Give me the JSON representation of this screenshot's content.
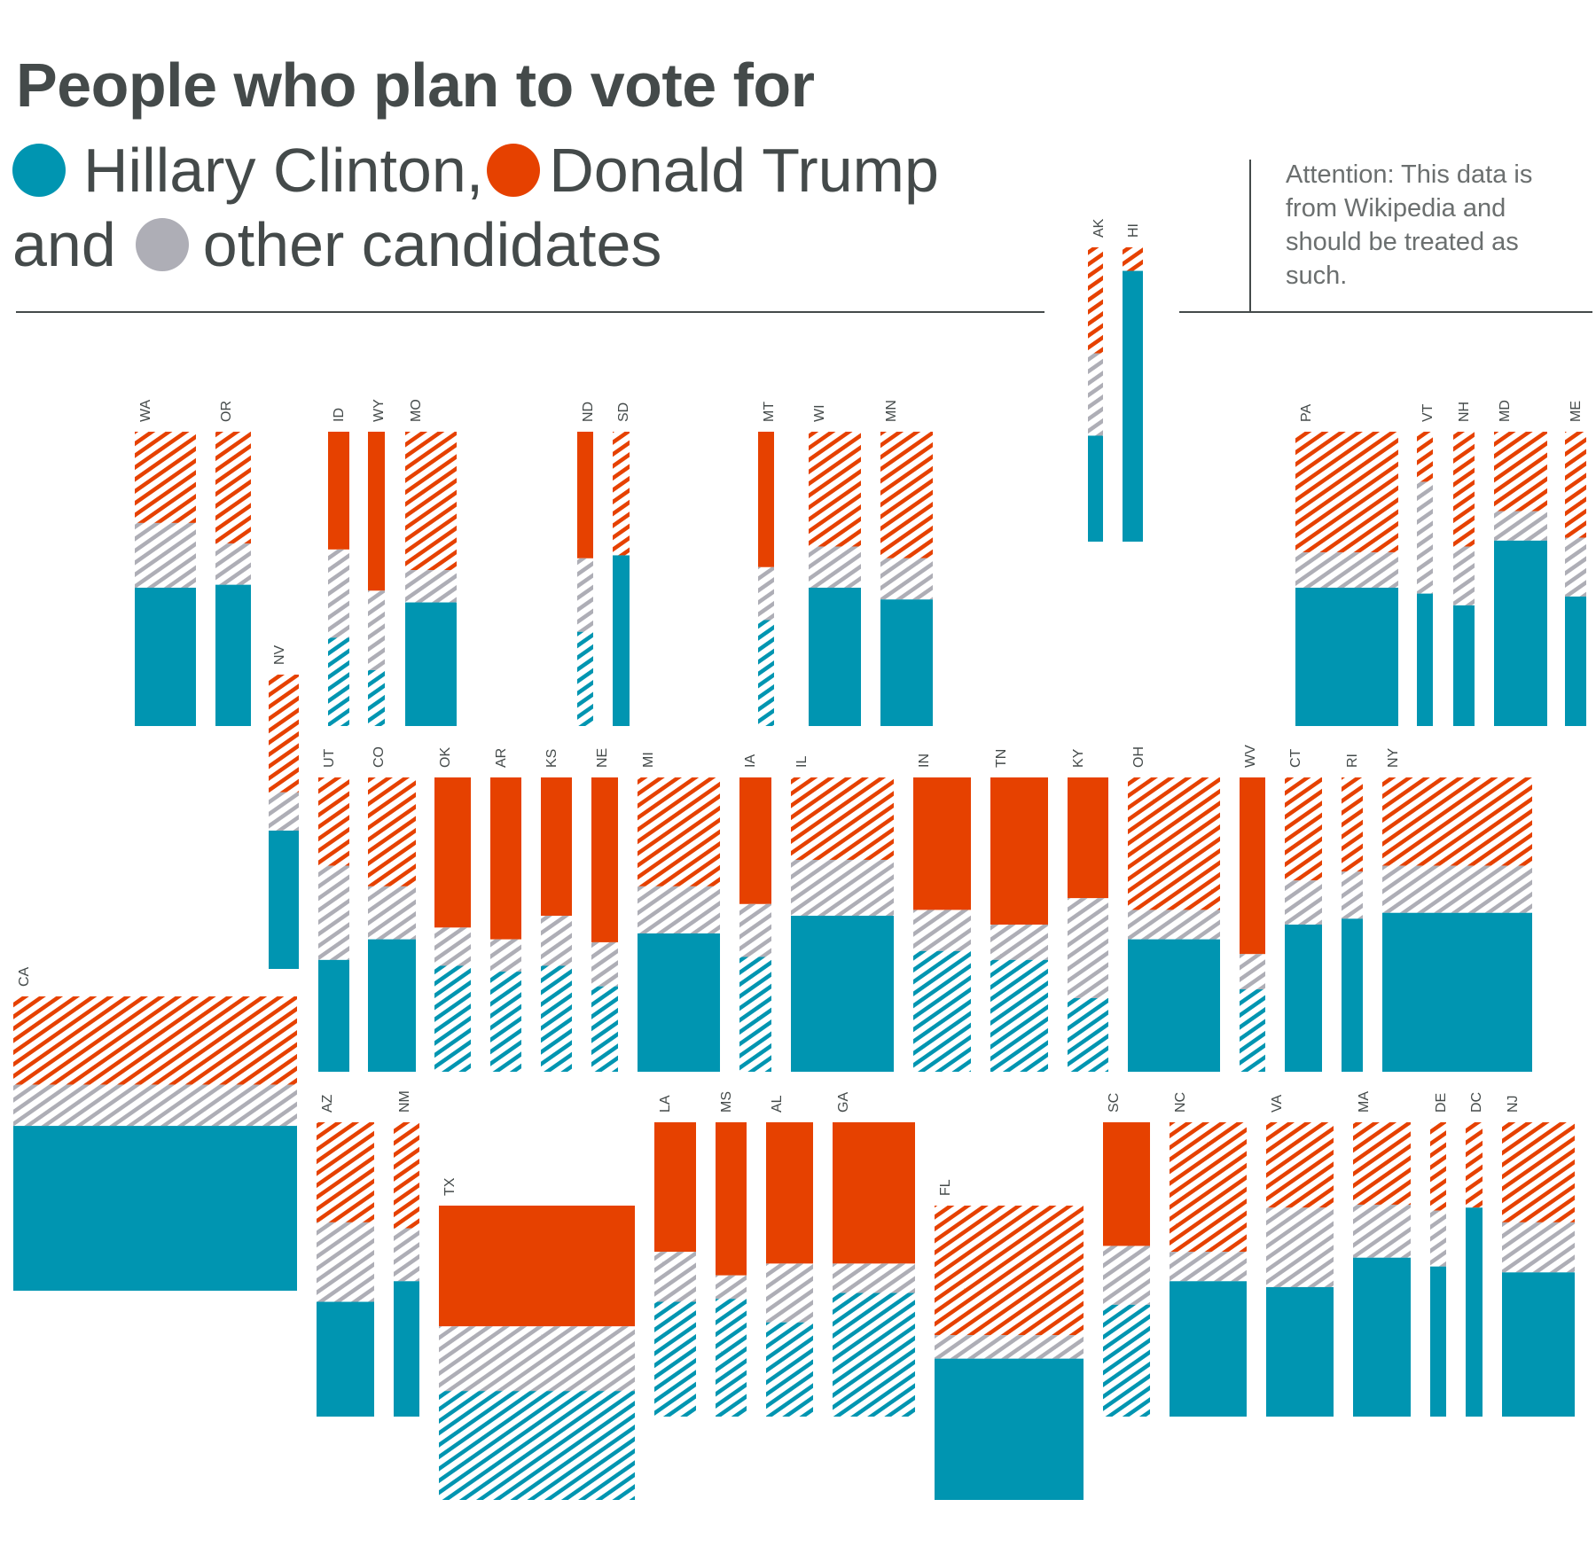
{
  "title": "People who plan to vote for",
  "legend": {
    "clinton": "Hillary Clinton,",
    "trump": "Donald Trump",
    "and": "and",
    "other": "other candidates"
  },
  "note": "Attention: This data is from Wikipedia and should be treated as such.",
  "colors": {
    "clinton": "#0095b1",
    "trump": "#e64100",
    "other": "#aeaeb6",
    "text": "#444a4a"
  },
  "chart_data": {
    "type": "bar",
    "title": "People who plan to vote for",
    "series": [
      {
        "name": "Hillary Clinton",
        "color": "#0095b1"
      },
      {
        "name": "Donald Trump",
        "color": "#e64100"
      },
      {
        "name": "other candidates",
        "color": "#aeaeb6"
      }
    ],
    "states": [
      {
        "state": "WA",
        "clinton": 47,
        "other": 22,
        "trump": 31,
        "hatch_clinton": false,
        "hatch_trump": true
      },
      {
        "state": "OR",
        "clinton": 48,
        "other": 14,
        "trump": 38,
        "hatch_clinton": false,
        "hatch_trump": true
      },
      {
        "state": "ID",
        "clinton": 30,
        "other": 30,
        "trump": 40,
        "hatch_clinton": true,
        "hatch_trump": false
      },
      {
        "state": "WY",
        "clinton": 19,
        "other": 27,
        "trump": 54,
        "hatch_clinton": true,
        "hatch_trump": false
      },
      {
        "state": "MO",
        "clinton": 42,
        "other": 11,
        "trump": 47,
        "hatch_clinton": false,
        "hatch_trump": true
      },
      {
        "state": "ND",
        "clinton": 32,
        "other": 25,
        "trump": 43,
        "hatch_clinton": true,
        "hatch_trump": false
      },
      {
        "state": "SD",
        "clinton": 58,
        "other": 0,
        "trump": 42,
        "hatch_clinton": false,
        "hatch_trump": true
      },
      {
        "state": "MT",
        "clinton": 36,
        "other": 18,
        "trump": 46,
        "hatch_clinton": true,
        "hatch_trump": false
      },
      {
        "state": "WI",
        "clinton": 47,
        "other": 14,
        "trump": 39,
        "hatch_clinton": false,
        "hatch_trump": true
      },
      {
        "state": "MN",
        "clinton": 43,
        "other": 14,
        "trump": 43,
        "hatch_clinton": false,
        "hatch_trump": true
      },
      {
        "state": "AK",
        "clinton": 36,
        "other": 28,
        "trump": 36,
        "hatch_clinton": false,
        "hatch_trump": true
      },
      {
        "state": "HI",
        "clinton": 92,
        "other": 0,
        "trump": 8,
        "hatch_clinton": false,
        "hatch_trump": true
      },
      {
        "state": "PA",
        "clinton": 47,
        "other": 12,
        "trump": 41,
        "hatch_clinton": false,
        "hatch_trump": true
      },
      {
        "state": "VT",
        "clinton": 45,
        "other": 38,
        "trump": 17,
        "hatch_clinton": false,
        "hatch_trump": true
      },
      {
        "state": "NH",
        "clinton": 41,
        "other": 20,
        "trump": 39,
        "hatch_clinton": false,
        "hatch_trump": true
      },
      {
        "state": "MD",
        "clinton": 63,
        "other": 10,
        "trump": 27,
        "hatch_clinton": false,
        "hatch_trump": true
      },
      {
        "state": "ME",
        "clinton": 44,
        "other": 20,
        "trump": 36,
        "hatch_clinton": false,
        "hatch_trump": true
      },
      {
        "state": "NV",
        "clinton": 47,
        "other": 13,
        "trump": 40,
        "hatch_clinton": false,
        "hatch_trump": true
      },
      {
        "state": "UT",
        "clinton": 38,
        "other": 32,
        "trump": 30,
        "hatch_clinton": false,
        "hatch_trump": true
      },
      {
        "state": "CO",
        "clinton": 45,
        "other": 18,
        "trump": 37,
        "hatch_clinton": false,
        "hatch_trump": true
      },
      {
        "state": "OK",
        "clinton": 36,
        "other": 13,
        "trump": 51,
        "hatch_clinton": true,
        "hatch_trump": false
      },
      {
        "state": "AR",
        "clinton": 34,
        "other": 11,
        "trump": 55,
        "hatch_clinton": true,
        "hatch_trump": false
      },
      {
        "state": "KS",
        "clinton": 36,
        "other": 17,
        "trump": 47,
        "hatch_clinton": true,
        "hatch_trump": false
      },
      {
        "state": "NE",
        "clinton": 29,
        "other": 15,
        "trump": 56,
        "hatch_clinton": true,
        "hatch_trump": false
      },
      {
        "state": "MI",
        "clinton": 47,
        "other": 16,
        "trump": 37,
        "hatch_clinton": false,
        "hatch_trump": true
      },
      {
        "state": "IA",
        "clinton": 39,
        "other": 18,
        "trump": 43,
        "hatch_clinton": true,
        "hatch_trump": false
      },
      {
        "state": "IL",
        "clinton": 53,
        "other": 19,
        "trump": 28,
        "hatch_clinton": false,
        "hatch_trump": true
      },
      {
        "state": "IN",
        "clinton": 41,
        "other": 14,
        "trump": 45,
        "hatch_clinton": true,
        "hatch_trump": false
      },
      {
        "state": "TN",
        "clinton": 38,
        "other": 12,
        "trump": 50,
        "hatch_clinton": true,
        "hatch_trump": false
      },
      {
        "state": "KY",
        "clinton": 25,
        "other": 34,
        "trump": 41,
        "hatch_clinton": true,
        "hatch_trump": false
      },
      {
        "state": "OH",
        "clinton": 45,
        "other": 10,
        "trump": 45,
        "hatch_clinton": false,
        "hatch_trump": true
      },
      {
        "state": "WV",
        "clinton": 28,
        "other": 12,
        "trump": 60,
        "hatch_clinton": true,
        "hatch_trump": false
      },
      {
        "state": "CT",
        "clinton": 50,
        "other": 15,
        "trump": 35,
        "hatch_clinton": false,
        "hatch_trump": true
      },
      {
        "state": "RI",
        "clinton": 52,
        "other": 16,
        "trump": 32,
        "hatch_clinton": false,
        "hatch_trump": true
      },
      {
        "state": "NY",
        "clinton": 54,
        "other": 16,
        "trump": 30,
        "hatch_clinton": false,
        "hatch_trump": true
      },
      {
        "state": "CA",
        "clinton": 56,
        "other": 14,
        "trump": 30,
        "hatch_clinton": false,
        "hatch_trump": true
      },
      {
        "state": "AZ",
        "clinton": 39,
        "other": 27,
        "trump": 34,
        "hatch_clinton": false,
        "hatch_trump": true
      },
      {
        "state": "NM",
        "clinton": 46,
        "other": 18,
        "trump": 36,
        "hatch_clinton": false,
        "hatch_trump": true
      },
      {
        "state": "TX",
        "clinton": 37,
        "other": 22,
        "trump": 41,
        "hatch_clinton": true,
        "hatch_trump": false
      },
      {
        "state": "LA",
        "clinton": 39,
        "other": 17,
        "trump": 44,
        "hatch_clinton": true,
        "hatch_trump": false
      },
      {
        "state": "MS",
        "clinton": 40,
        "other": 8,
        "trump": 52,
        "hatch_clinton": true,
        "hatch_trump": false
      },
      {
        "state": "AL",
        "clinton": 32,
        "other": 20,
        "trump": 48,
        "hatch_clinton": true,
        "hatch_trump": false
      },
      {
        "state": "GA",
        "clinton": 42,
        "other": 10,
        "trump": 48,
        "hatch_clinton": true,
        "hatch_trump": false
      },
      {
        "state": "FL",
        "clinton": 48,
        "other": 8,
        "trump": 44,
        "hatch_clinton": false,
        "hatch_trump": true
      },
      {
        "state": "SC",
        "clinton": 38,
        "other": 20,
        "trump": 42,
        "hatch_clinton": true,
        "hatch_trump": false
      },
      {
        "state": "NC",
        "clinton": 46,
        "other": 10,
        "trump": 44,
        "hatch_clinton": false,
        "hatch_trump": true
      },
      {
        "state": "VA",
        "clinton": 44,
        "other": 27,
        "trump": 29,
        "hatch_clinton": false,
        "hatch_trump": true
      },
      {
        "state": "MA",
        "clinton": 54,
        "other": 18,
        "trump": 28,
        "hatch_clinton": false,
        "hatch_trump": true
      },
      {
        "state": "DE",
        "clinton": 51,
        "other": 19,
        "trump": 30,
        "hatch_clinton": false,
        "hatch_trump": true
      },
      {
        "state": "DC",
        "clinton": 71,
        "other": 0,
        "trump": 29,
        "hatch_clinton": false,
        "hatch_trump": true
      },
      {
        "state": "NJ",
        "clinton": 49,
        "other": 17,
        "trump": 34,
        "hatch_clinton": false,
        "hatch_trump": true
      }
    ]
  }
}
